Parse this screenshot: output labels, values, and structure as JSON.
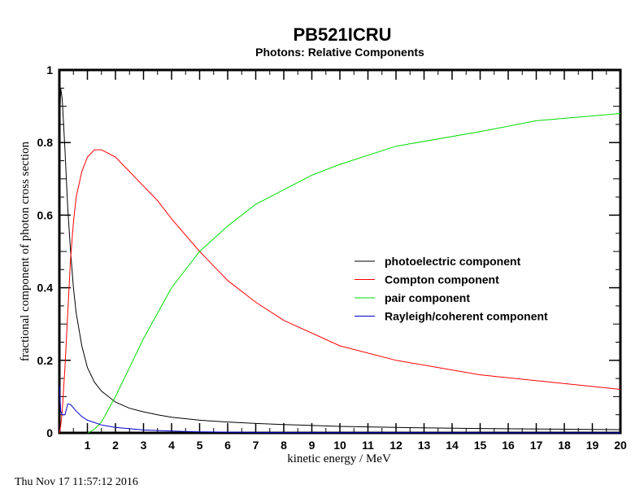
{
  "timestamp": "Thu Nov 17 11:57:12 2016",
  "chart_data": {
    "type": "line",
    "title": "PB521ICRU",
    "subtitle": "Photons: Relative Components",
    "xlabel": "kinetic energy / MeV",
    "ylabel": "fractional component of photon cross section",
    "xlim": [
      0,
      20
    ],
    "ylim": [
      0,
      1
    ],
    "x_ticks": [
      1,
      2,
      3,
      4,
      5,
      6,
      7,
      8,
      9,
      10,
      11,
      12,
      13,
      14,
      15,
      16,
      17,
      18,
      19,
      20
    ],
    "x_tick_labels": [
      "1",
      "2",
      "3",
      "4",
      "5",
      "6",
      "7",
      "8",
      "9",
      "10",
      "11",
      "12",
      "13",
      "14",
      "15",
      "16",
      "17",
      "18",
      "19",
      "20"
    ],
    "y_ticks": [
      0,
      0.2,
      0.4,
      0.6,
      0.8,
      1
    ],
    "y_tick_labels": [
      "0",
      "0.2",
      "0.4",
      "0.6",
      "0.8",
      "1"
    ],
    "grid": false,
    "legend_position": "right-middle",
    "series": [
      {
        "name": "photoelectric component",
        "color": "#000000",
        "points": [
          [
            0.02,
            0.88
          ],
          [
            0.05,
            0.95
          ],
          [
            0.1,
            0.92
          ],
          [
            0.2,
            0.78
          ],
          [
            0.3,
            0.62
          ],
          [
            0.4,
            0.5
          ],
          [
            0.5,
            0.4
          ],
          [
            0.6,
            0.33
          ],
          [
            0.8,
            0.24
          ],
          [
            1.0,
            0.18
          ],
          [
            1.25,
            0.14
          ],
          [
            1.5,
            0.115
          ],
          [
            2.0,
            0.085
          ],
          [
            2.5,
            0.068
          ],
          [
            3.0,
            0.058
          ],
          [
            3.5,
            0.05
          ],
          [
            4.0,
            0.043
          ],
          [
            5.0,
            0.035
          ],
          [
            6.0,
            0.03
          ],
          [
            7.0,
            0.026
          ],
          [
            8.0,
            0.023
          ],
          [
            10.0,
            0.018
          ],
          [
            12.0,
            0.015
          ],
          [
            15.0,
            0.012
          ],
          [
            20.0,
            0.009
          ]
        ]
      },
      {
        "name": "Compton component",
        "color": "#ff0000",
        "points": [
          [
            0.0,
            0.0
          ],
          [
            0.05,
            0.02
          ],
          [
            0.1,
            0.06
          ],
          [
            0.2,
            0.18
          ],
          [
            0.3,
            0.33
          ],
          [
            0.4,
            0.48
          ],
          [
            0.5,
            0.58
          ],
          [
            0.6,
            0.65
          ],
          [
            0.8,
            0.72
          ],
          [
            1.0,
            0.76
          ],
          [
            1.25,
            0.78
          ],
          [
            1.5,
            0.78
          ],
          [
            2.0,
            0.76
          ],
          [
            2.5,
            0.72
          ],
          [
            3.0,
            0.68
          ],
          [
            3.5,
            0.64
          ],
          [
            4.0,
            0.59
          ],
          [
            5.0,
            0.5
          ],
          [
            6.0,
            0.42
          ],
          [
            7.0,
            0.36
          ],
          [
            8.0,
            0.31
          ],
          [
            10.0,
            0.24
          ],
          [
            12.0,
            0.2
          ],
          [
            15.0,
            0.16
          ],
          [
            20.0,
            0.12
          ]
        ]
      },
      {
        "name": "pair component",
        "color": "#00dd00",
        "points": [
          [
            1.02,
            0.0
          ],
          [
            1.25,
            0.01
          ],
          [
            1.5,
            0.03
          ],
          [
            2.0,
            0.1
          ],
          [
            2.5,
            0.18
          ],
          [
            3.0,
            0.26
          ],
          [
            3.5,
            0.33
          ],
          [
            4.0,
            0.4
          ],
          [
            5.0,
            0.5
          ],
          [
            6.0,
            0.57
          ],
          [
            7.0,
            0.63
          ],
          [
            8.0,
            0.67
          ],
          [
            9.0,
            0.71
          ],
          [
            10.0,
            0.74
          ],
          [
            12.0,
            0.79
          ],
          [
            15.0,
            0.83
          ],
          [
            17.0,
            0.86
          ],
          [
            20.0,
            0.88
          ]
        ]
      },
      {
        "name": "Rayleigh/coherent component",
        "color": "#0000cc",
        "points": [
          [
            0.0,
            0.13
          ],
          [
            0.05,
            0.06
          ],
          [
            0.1,
            0.05
          ],
          [
            0.2,
            0.05
          ],
          [
            0.3,
            0.08
          ],
          [
            0.4,
            0.078
          ],
          [
            0.6,
            0.06
          ],
          [
            0.8,
            0.045
          ],
          [
            1.0,
            0.035
          ],
          [
            1.5,
            0.022
          ],
          [
            2.0,
            0.015
          ],
          [
            3.0,
            0.008
          ],
          [
            4.0,
            0.005
          ],
          [
            5.0,
            0.003
          ],
          [
            6.0,
            0.002
          ],
          [
            8.0,
            0.001
          ],
          [
            10.0,
            0.0007
          ],
          [
            15.0,
            0.0003
          ],
          [
            20.0,
            0.0002
          ]
        ]
      }
    ]
  }
}
